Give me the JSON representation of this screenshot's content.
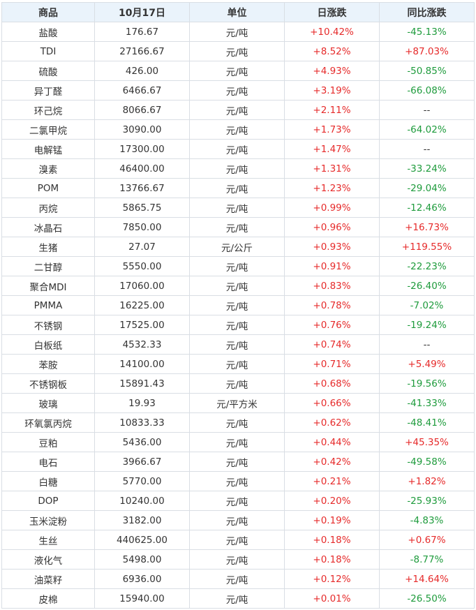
{
  "colors": {
    "up": "#e62a2a",
    "down": "#1e9b3c",
    "header_bg": "#eaf3fb",
    "border": "#d9dee4"
  },
  "headers": [
    "商品",
    "10月17日",
    "单位",
    "日涨跌",
    "同比涨跌"
  ],
  "rows": [
    {
      "name": "盐酸",
      "price": "176.67",
      "unit": "元/吨",
      "daily": "+10.42%",
      "yoy": "-45.13%"
    },
    {
      "name": "TDI",
      "price": "27166.67",
      "unit": "元/吨",
      "daily": "+8.52%",
      "yoy": "+87.03%"
    },
    {
      "name": "硫酸",
      "price": "426.00",
      "unit": "元/吨",
      "daily": "+4.93%",
      "yoy": "-50.85%"
    },
    {
      "name": "异丁醛",
      "price": "6466.67",
      "unit": "元/吨",
      "daily": "+3.19%",
      "yoy": "-66.08%"
    },
    {
      "name": "环己烷",
      "price": "8066.67",
      "unit": "元/吨",
      "daily": "+2.11%",
      "yoy": "--"
    },
    {
      "name": "二氯甲烷",
      "price": "3090.00",
      "unit": "元/吨",
      "daily": "+1.73%",
      "yoy": "-64.02%"
    },
    {
      "name": "电解锰",
      "price": "17300.00",
      "unit": "元/吨",
      "daily": "+1.47%",
      "yoy": "--"
    },
    {
      "name": "溴素",
      "price": "46400.00",
      "unit": "元/吨",
      "daily": "+1.31%",
      "yoy": "-33.24%"
    },
    {
      "name": "POM",
      "price": "13766.67",
      "unit": "元/吨",
      "daily": "+1.23%",
      "yoy": "-29.04%"
    },
    {
      "name": "丙烷",
      "price": "5865.75",
      "unit": "元/吨",
      "daily": "+0.99%",
      "yoy": "-12.46%"
    },
    {
      "name": "冰晶石",
      "price": "7850.00",
      "unit": "元/吨",
      "daily": "+0.96%",
      "yoy": "+16.73%"
    },
    {
      "name": "生猪",
      "price": "27.07",
      "unit": "元/公斤",
      "daily": "+0.93%",
      "yoy": "+119.55%"
    },
    {
      "name": "二甘醇",
      "price": "5550.00",
      "unit": "元/吨",
      "daily": "+0.91%",
      "yoy": "-22.23%"
    },
    {
      "name": "聚合MDI",
      "price": "17060.00",
      "unit": "元/吨",
      "daily": "+0.83%",
      "yoy": "-26.40%"
    },
    {
      "name": "PMMA",
      "price": "16225.00",
      "unit": "元/吨",
      "daily": "+0.78%",
      "yoy": "-7.02%"
    },
    {
      "name": "不锈钢",
      "price": "17525.00",
      "unit": "元/吨",
      "daily": "+0.76%",
      "yoy": "-19.24%"
    },
    {
      "name": "白板纸",
      "price": "4532.33",
      "unit": "元/吨",
      "daily": "+0.74%",
      "yoy": "--"
    },
    {
      "name": "苯胺",
      "price": "14100.00",
      "unit": "元/吨",
      "daily": "+0.71%",
      "yoy": "+5.49%"
    },
    {
      "name": "不锈钢板",
      "price": "15891.43",
      "unit": "元/吨",
      "daily": "+0.68%",
      "yoy": "-19.56%"
    },
    {
      "name": "玻璃",
      "price": "19.93",
      "unit": "元/平方米",
      "daily": "+0.66%",
      "yoy": "-41.33%"
    },
    {
      "name": "环氧氯丙烷",
      "price": "10833.33",
      "unit": "元/吨",
      "daily": "+0.62%",
      "yoy": "-48.41%"
    },
    {
      "name": "豆粕",
      "price": "5436.00",
      "unit": "元/吨",
      "daily": "+0.44%",
      "yoy": "+45.35%"
    },
    {
      "name": "电石",
      "price": "3966.67",
      "unit": "元/吨",
      "daily": "+0.42%",
      "yoy": "-49.58%"
    },
    {
      "name": "白糖",
      "price": "5770.00",
      "unit": "元/吨",
      "daily": "+0.21%",
      "yoy": "+1.82%"
    },
    {
      "name": "DOP",
      "price": "10240.00",
      "unit": "元/吨",
      "daily": "+0.20%",
      "yoy": "-25.93%"
    },
    {
      "name": "玉米淀粉",
      "price": "3182.00",
      "unit": "元/吨",
      "daily": "+0.19%",
      "yoy": "-4.83%"
    },
    {
      "name": "生丝",
      "price": "440625.00",
      "unit": "元/吨",
      "daily": "+0.18%",
      "yoy": "+0.67%"
    },
    {
      "name": "液化气",
      "price": "5498.00",
      "unit": "元/吨",
      "daily": "+0.18%",
      "yoy": "-8.77%"
    },
    {
      "name": "油菜籽",
      "price": "6936.00",
      "unit": "元/吨",
      "daily": "+0.12%",
      "yoy": "+14.64%"
    },
    {
      "name": "皮棉",
      "price": "15940.00",
      "unit": "元/吨",
      "daily": "+0.01%",
      "yoy": "-26.50%"
    }
  ]
}
